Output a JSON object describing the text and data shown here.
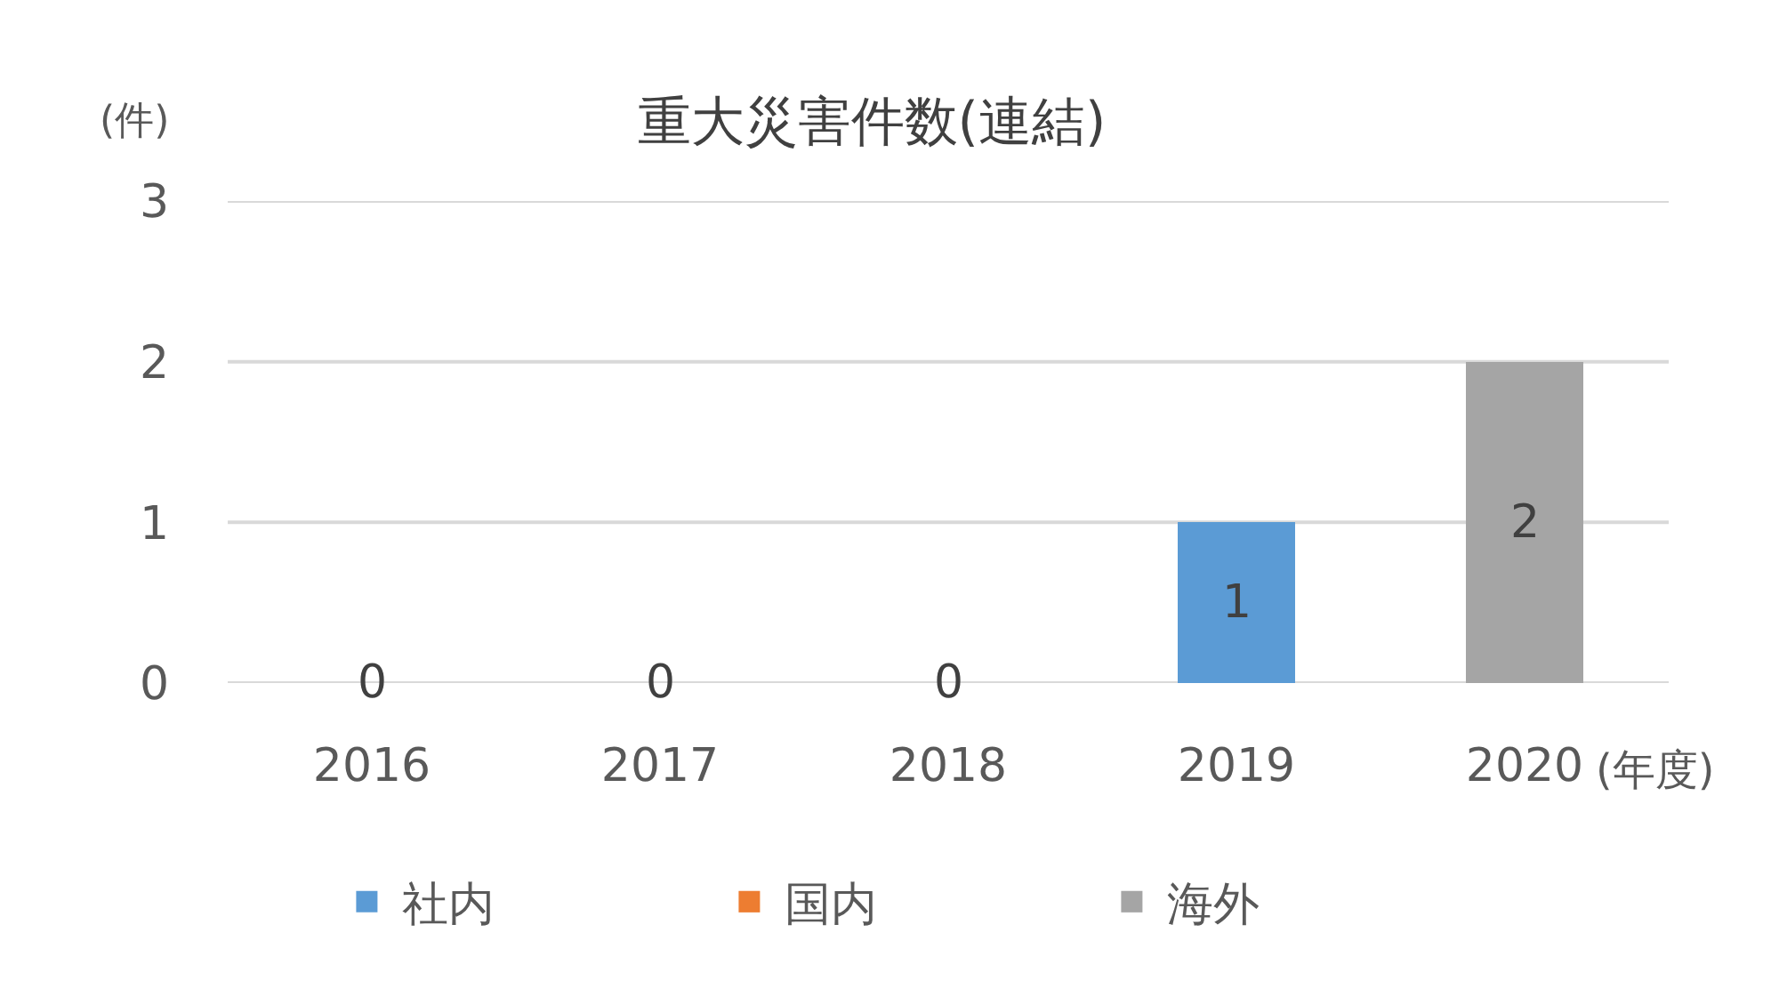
{
  "chart_data": {
    "type": "bar",
    "title": "重大災害件数(連結)",
    "ylabel": "(件)",
    "xlabel": "(年度)",
    "categories": [
      "2016",
      "2017",
      "2018",
      "2019",
      "2020"
    ],
    "stacked": true,
    "series": [
      {
        "name": "社内",
        "color": "#5b9bd5",
        "values": [
          0,
          0,
          0,
          1,
          0
        ],
        "value_labels": [
          "0",
          "0",
          "0",
          "1",
          null
        ]
      },
      {
        "name": "国内",
        "color": "#ed7d31",
        "values": [
          0,
          0,
          0,
          0,
          0
        ]
      },
      {
        "name": "海外",
        "color": "#a5a5a5",
        "values": [
          0,
          0,
          0,
          0,
          2
        ],
        "value_labels": [
          null,
          null,
          null,
          null,
          "2"
        ]
      }
    ],
    "ylim": [
      0,
      3
    ],
    "yticks": [
      0,
      1,
      2,
      3
    ],
    "grid": "y",
    "legend": "bottom"
  }
}
